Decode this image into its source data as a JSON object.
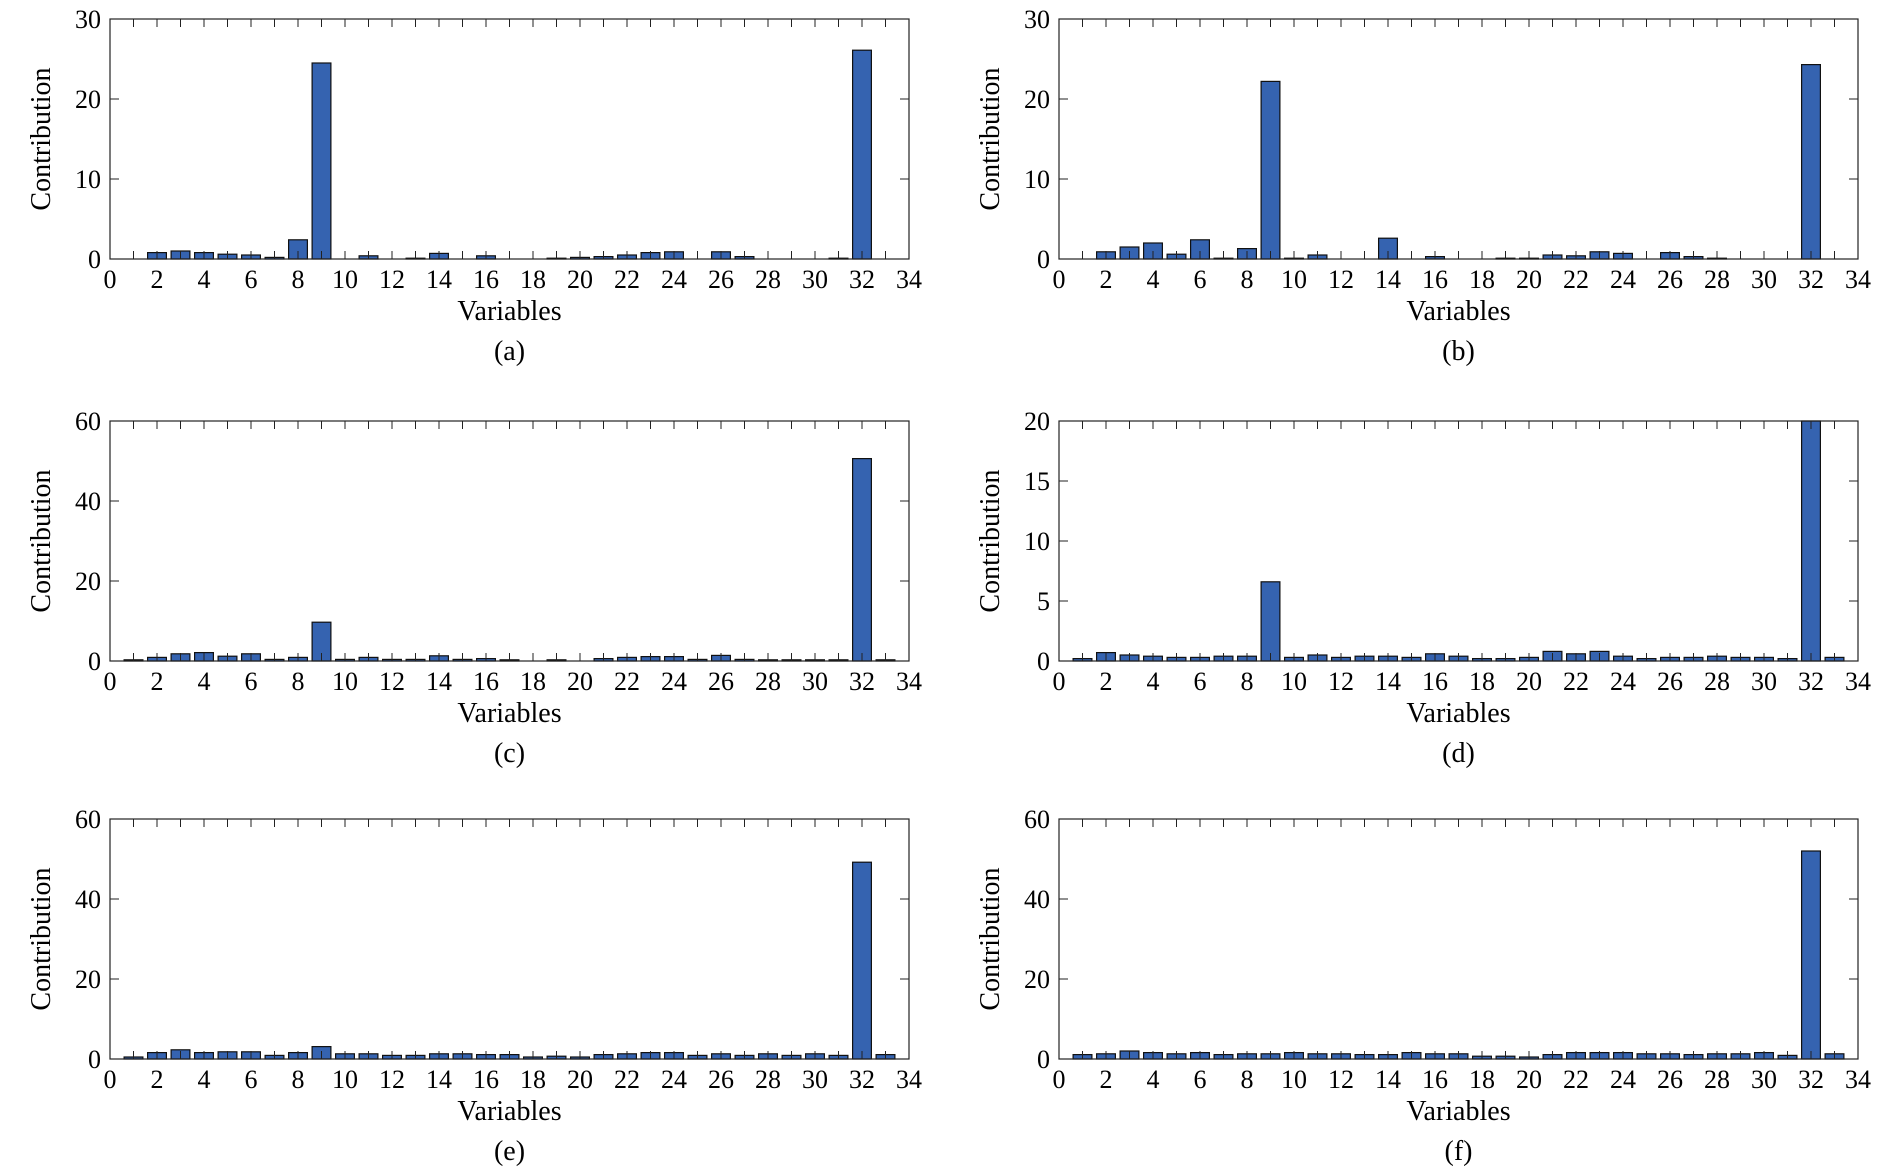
{
  "chart_data": [
    {
      "panel_label": "(a)",
      "type": "bar",
      "xlabel": "Variables",
      "ylabel": "Contribution",
      "xlim": [
        0,
        34
      ],
      "ylim": [
        0,
        30
      ],
      "xticks": [
        0,
        2,
        4,
        6,
        8,
        10,
        12,
        14,
        16,
        18,
        20,
        22,
        24,
        26,
        28,
        30,
        32,
        34
      ],
      "yticks": [
        0,
        10,
        20,
        30
      ],
      "categories": [
        1,
        2,
        3,
        4,
        5,
        6,
        7,
        8,
        9,
        10,
        11,
        12,
        13,
        14,
        15,
        16,
        17,
        18,
        19,
        20,
        21,
        22,
        23,
        24,
        25,
        26,
        27,
        28,
        29,
        30,
        31,
        32,
        33
      ],
      "values": [
        0,
        0.8,
        1.0,
        0.8,
        0.6,
        0.5,
        0.2,
        2.4,
        24.5,
        0,
        0.4,
        0,
        0.1,
        0.7,
        0,
        0.4,
        0,
        0,
        0.1,
        0.2,
        0.3,
        0.5,
        0.8,
        0.9,
        0,
        0.9,
        0.3,
        0,
        0,
        0,
        0.1,
        26.1,
        0
      ]
    },
    {
      "panel_label": "(b)",
      "type": "bar",
      "xlabel": "Variables",
      "ylabel": "Contribution",
      "xlim": [
        0,
        34
      ],
      "ylim": [
        0,
        30
      ],
      "xticks": [
        0,
        2,
        4,
        6,
        8,
        10,
        12,
        14,
        16,
        18,
        20,
        22,
        24,
        26,
        28,
        30,
        32,
        34
      ],
      "yticks": [
        0,
        10,
        20,
        30
      ],
      "categories": [
        1,
        2,
        3,
        4,
        5,
        6,
        7,
        8,
        9,
        10,
        11,
        12,
        13,
        14,
        15,
        16,
        17,
        18,
        19,
        20,
        21,
        22,
        23,
        24,
        25,
        26,
        27,
        28,
        29,
        30,
        31,
        32,
        33
      ],
      "values": [
        0,
        0.9,
        1.5,
        2.0,
        0.6,
        2.4,
        0.1,
        1.3,
        22.2,
        0.1,
        0.5,
        0,
        0,
        2.6,
        0,
        0.3,
        0,
        0,
        0.1,
        0.1,
        0.5,
        0.4,
        0.9,
        0.7,
        0,
        0.8,
        0.3,
        0.1,
        0,
        0,
        0,
        24.3,
        0
      ]
    },
    {
      "panel_label": "(c)",
      "type": "bar",
      "xlabel": "Variables",
      "ylabel": "Contribution",
      "xlim": [
        0,
        34
      ],
      "ylim": [
        0,
        60
      ],
      "xticks": [
        0,
        2,
        4,
        6,
        8,
        10,
        12,
        14,
        16,
        18,
        20,
        22,
        24,
        26,
        28,
        30,
        32,
        34
      ],
      "yticks": [
        0,
        20,
        40,
        60
      ],
      "categories": [
        1,
        2,
        3,
        4,
        5,
        6,
        7,
        8,
        9,
        10,
        11,
        12,
        13,
        14,
        15,
        16,
        17,
        18,
        19,
        20,
        21,
        22,
        23,
        24,
        25,
        26,
        27,
        28,
        29,
        30,
        31,
        32,
        33
      ],
      "values": [
        0.3,
        0.9,
        1.8,
        2.1,
        1.2,
        1.8,
        0.4,
        0.9,
        9.7,
        0.4,
        0.9,
        0.4,
        0.4,
        1.3,
        0.4,
        0.6,
        0.3,
        0,
        0.3,
        0,
        0.6,
        0.9,
        1.1,
        1.1,
        0.4,
        1.4,
        0.4,
        0.3,
        0.3,
        0.3,
        0.3,
        50.6,
        0.3
      ]
    },
    {
      "panel_label": "(d)",
      "type": "bar",
      "xlabel": "Variables",
      "ylabel": "Contribution",
      "xlim": [
        0,
        34
      ],
      "ylim": [
        0,
        20
      ],
      "xticks": [
        0,
        2,
        4,
        6,
        8,
        10,
        12,
        14,
        16,
        18,
        20,
        22,
        24,
        26,
        28,
        30,
        32,
        34
      ],
      "yticks": [
        0,
        5,
        10,
        15,
        20
      ],
      "categories": [
        1,
        2,
        3,
        4,
        5,
        6,
        7,
        8,
        9,
        10,
        11,
        12,
        13,
        14,
        15,
        16,
        17,
        18,
        19,
        20,
        21,
        22,
        23,
        24,
        25,
        26,
        27,
        28,
        29,
        30,
        31,
        32,
        33
      ],
      "values": [
        0.2,
        0.7,
        0.5,
        0.4,
        0.3,
        0.3,
        0.4,
        0.4,
        6.6,
        0.3,
        0.5,
        0.3,
        0.4,
        0.4,
        0.3,
        0.6,
        0.4,
        0.2,
        0.2,
        0.3,
        0.8,
        0.6,
        0.8,
        0.4,
        0.2,
        0.3,
        0.3,
        0.4,
        0.3,
        0.3,
        0.2,
        20.0,
        0.3
      ]
    },
    {
      "panel_label": "(e)",
      "type": "bar",
      "xlabel": "Variables",
      "ylabel": "Contribution",
      "xlim": [
        0,
        34
      ],
      "ylim": [
        0,
        60
      ],
      "xticks": [
        0,
        2,
        4,
        6,
        8,
        10,
        12,
        14,
        16,
        18,
        20,
        22,
        24,
        26,
        28,
        30,
        32,
        34
      ],
      "yticks": [
        0,
        20,
        40,
        60
      ],
      "categories": [
        1,
        2,
        3,
        4,
        5,
        6,
        7,
        8,
        9,
        10,
        11,
        12,
        13,
        14,
        15,
        16,
        17,
        18,
        19,
        20,
        21,
        22,
        23,
        24,
        25,
        26,
        27,
        28,
        29,
        30,
        31,
        32,
        33
      ],
      "values": [
        0.5,
        1.6,
        2.3,
        1.6,
        1.8,
        1.8,
        0.9,
        1.6,
        3.1,
        1.3,
        1.3,
        0.9,
        0.9,
        1.3,
        1.3,
        1.1,
        1.1,
        0.5,
        0.7,
        0.5,
        1.1,
        1.3,
        1.6,
        1.6,
        0.9,
        1.3,
        0.9,
        1.3,
        0.9,
        1.3,
        0.9,
        49.2,
        1.1
      ]
    },
    {
      "panel_label": "(f)",
      "type": "bar",
      "xlabel": "Variables",
      "ylabel": "Contribution",
      "xlim": [
        0,
        34
      ],
      "ylim": [
        0,
        60
      ],
      "xticks": [
        0,
        2,
        4,
        6,
        8,
        10,
        12,
        14,
        16,
        18,
        20,
        22,
        24,
        26,
        28,
        30,
        32,
        34
      ],
      "yticks": [
        0,
        20,
        40,
        60
      ],
      "categories": [
        1,
        2,
        3,
        4,
        5,
        6,
        7,
        8,
        9,
        10,
        11,
        12,
        13,
        14,
        15,
        16,
        17,
        18,
        19,
        20,
        21,
        22,
        23,
        24,
        25,
        26,
        27,
        28,
        29,
        30,
        31,
        32,
        33
      ],
      "values": [
        1.1,
        1.3,
        2.0,
        1.6,
        1.3,
        1.6,
        1.1,
        1.3,
        1.3,
        1.6,
        1.3,
        1.3,
        1.1,
        1.1,
        1.6,
        1.3,
        1.3,
        0.7,
        0.7,
        0.5,
        1.1,
        1.6,
        1.6,
        1.6,
        1.3,
        1.3,
        1.1,
        1.3,
        1.3,
        1.6,
        0.9,
        52.0,
        1.3
      ]
    }
  ],
  "colors": {
    "bar_fill": "#3563b0",
    "bar_stroke": "#111111",
    "axis": "#222222"
  }
}
